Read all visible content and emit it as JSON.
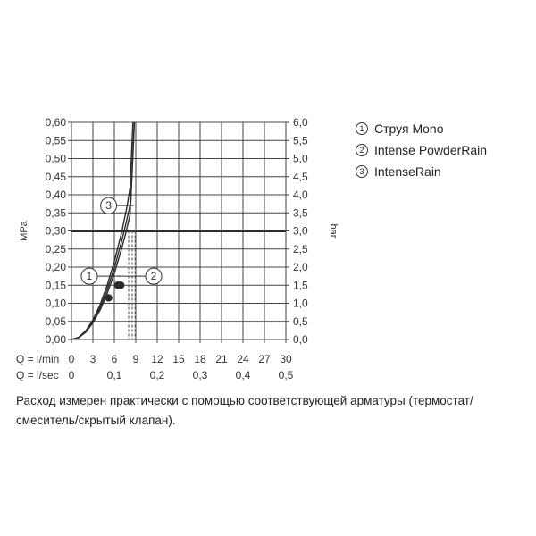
{
  "chart_data": {
    "type": "line",
    "ylabel_left": "MPa",
    "ylabel_right": "bar",
    "y_left_ticks": [
      "0,00",
      "0,05",
      "0,10",
      "0,15",
      "0,20",
      "0,25",
      "0,30",
      "0,35",
      "0,40",
      "0,45",
      "0,50",
      "0,55",
      "0,60"
    ],
    "y_right_ticks": [
      "0,0",
      "0,5",
      "1,0",
      "1,5",
      "2,0",
      "2,5",
      "3,0",
      "3,5",
      "4,0",
      "4,5",
      "5,0",
      "5,5",
      "6,0"
    ],
    "ylim": [
      0,
      0.6
    ],
    "xlim": [
      0,
      30
    ],
    "x_lmin_label": "Q = l/min",
    "x_lmin_ticks": [
      "0",
      "3",
      "6",
      "9",
      "12",
      "15",
      "18",
      "21",
      "24",
      "27",
      "30"
    ],
    "x_lsec_label": "Q = l/sec",
    "x_lsec_ticks": [
      "0",
      "0,1",
      "0,2",
      "0,3",
      "0,4",
      "0,5"
    ],
    "reference_line_mpa": 0.3,
    "series": [
      {
        "name": "Струя Mono",
        "number": "1",
        "x": [
          0,
          1,
          2,
          3,
          4,
          5,
          6,
          7,
          7.8,
          8.2,
          8.6
        ],
        "y": [
          0,
          0.006,
          0.024,
          0.054,
          0.096,
          0.15,
          0.216,
          0.294,
          0.37,
          0.42,
          0.6
        ],
        "marker_x": 5.2,
        "marker_y": 0.115,
        "drop_x": 8.0
      },
      {
        "name": "Intense PowderRain",
        "number": "2",
        "x": [
          0,
          1,
          2,
          3,
          4,
          5,
          6,
          7,
          7.6,
          8.2,
          8.8
        ],
        "y": [
          0,
          0.005,
          0.02,
          0.046,
          0.081,
          0.127,
          0.183,
          0.249,
          0.294,
          0.345,
          0.6
        ],
        "marker_x": 6.5,
        "marker_y": 0.15,
        "drop_x": 8.5
      },
      {
        "name": "IntenseRain",
        "number": "3",
        "x": [
          0,
          1,
          2,
          3,
          4,
          5,
          6,
          7,
          7.7,
          8.3,
          8.8
        ],
        "y": [
          0,
          0.005,
          0.022,
          0.05,
          0.088,
          0.138,
          0.198,
          0.27,
          0.327,
          0.38,
          0.6
        ],
        "marker_x": 6.9,
        "marker_y": 0.15,
        "drop_x": 8.9
      }
    ],
    "callouts": [
      {
        "number": "3",
        "series": 2,
        "x": 5.2,
        "y": 0.37
      },
      {
        "number": "1",
        "series": 0,
        "x": 2.5,
        "y": 0.175
      },
      {
        "number": "2",
        "series": 1,
        "x": 11.5,
        "y": 0.175
      }
    ]
  },
  "legend": [
    {
      "number": "1",
      "label": "Струя Mono"
    },
    {
      "number": "2",
      "label": "Intense PowderRain"
    },
    {
      "number": "3",
      "label": "IntenseRain"
    }
  ],
  "caption": "Расход измерен практически с помощью соответствующей арматуры (термостат/смеситель/скрытый клапан)."
}
